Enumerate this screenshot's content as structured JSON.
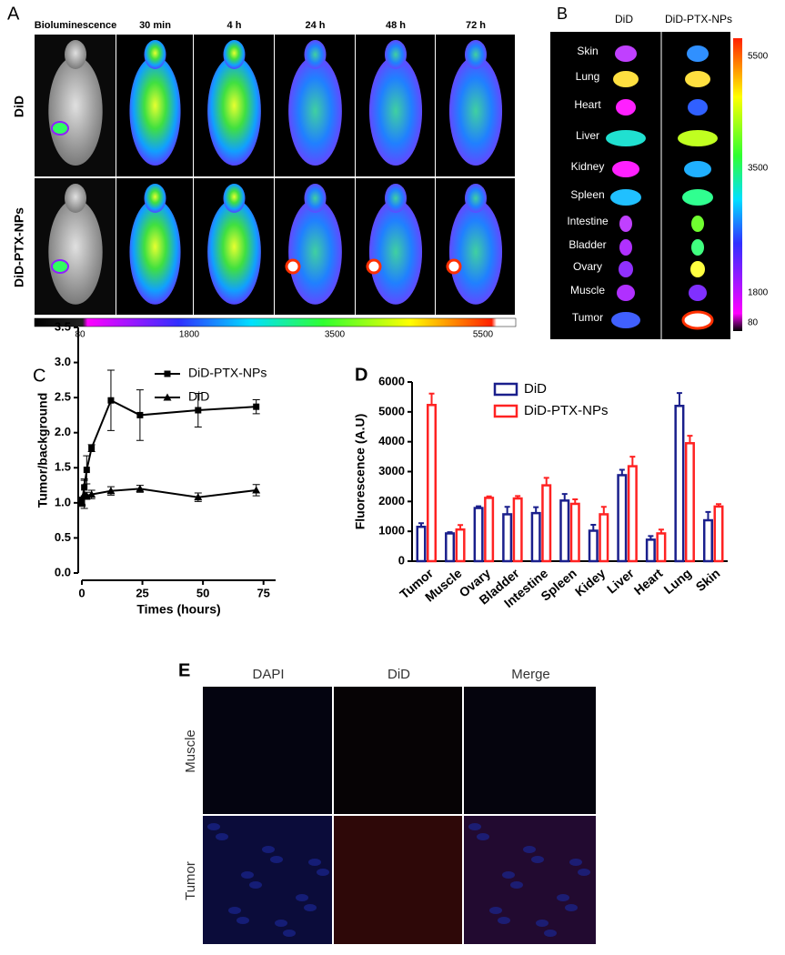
{
  "panel_a": {
    "label": "A",
    "columns": [
      "Bioluminescence",
      "30 min",
      "4 h",
      "24 h",
      "48 h",
      "72 h"
    ],
    "rows": [
      "DiD",
      "DiD-PTX-NPs"
    ],
    "scale_labels": [
      "80",
      "1800",
      "3500",
      "5500"
    ]
  },
  "panel_b": {
    "label": "B",
    "columns": [
      "DiD",
      "DiD-PTX-NPs"
    ],
    "organs": [
      "Skin",
      "Lung",
      "Heart",
      "Liver",
      "Kidney",
      "Spleen",
      "Intestine",
      "Bladder",
      "Ovary",
      "Muscle",
      "Tumor"
    ],
    "scale_labels": [
      "5500",
      "3500",
      "1800",
      "80"
    ]
  },
  "chart_data": [
    {
      "type": "line",
      "panel_label": "C",
      "x_label": "Times (hours)",
      "y_label": "Tumor/background",
      "xlim": [
        0,
        80
      ],
      "xticks": [
        0,
        25,
        50,
        75
      ],
      "ylim": [
        0,
        3.5
      ],
      "yticks": [
        {
          "value": 0,
          "label": "0.0"
        },
        0.5,
        {
          "value": 1,
          "label": "1.0"
        },
        1.5,
        {
          "value": 2,
          "label": "2.0"
        },
        2.5,
        {
          "value": 3,
          "label": "3.0"
        },
        3.5
      ],
      "x": [
        0,
        1,
        2,
        4,
        12,
        24,
        48,
        72
      ],
      "series": [
        {
          "name": "DiD-PTX-NPs",
          "color": "#000000",
          "marker": "square",
          "values": [
            1.03,
            1.22,
            1.47,
            1.78,
            2.46,
            2.25,
            2.32,
            2.37
          ],
          "errors": [
            0.05,
            0.12,
            0.2,
            0.05,
            0.43,
            0.36,
            0.24,
            0.1
          ]
        },
        {
          "name": "DiD",
          "color": "#000000",
          "marker": "triangle",
          "values": [
            1.0,
            1.12,
            1.1,
            1.12,
            1.17,
            1.2,
            1.08,
            1.18
          ],
          "errors": [
            0.05,
            0.2,
            0.05,
            0.06,
            0.06,
            0.05,
            0.06,
            0.08
          ]
        }
      ]
    },
    {
      "type": "bar",
      "panel_label": "D",
      "y_label": "Fluorescence (A.U)",
      "categories": [
        "Tumor",
        "Muscle",
        "Ovary",
        "Bladder",
        "Intestine",
        "Spleen",
        "Kidey",
        "Liver",
        "Heart",
        "Lung",
        "Skin"
      ],
      "ylim": [
        0,
        6000
      ],
      "yticks": [
        0,
        1000,
        2000,
        3000,
        4000,
        5000,
        6000
      ],
      "series": [
        {
          "name": "DiD",
          "color": "#1a1f8c",
          "values": [
            1150,
            930,
            1780,
            1570,
            1610,
            2030,
            1020,
            2880,
            720,
            5200,
            1370
          ],
          "errors": [
            120,
            40,
            60,
            250,
            200,
            220,
            200,
            180,
            120,
            430,
            280
          ]
        },
        {
          "name": "DiD-PTX-NPs",
          "color": "#ff2222",
          "values": [
            5230,
            1060,
            2120,
            2100,
            2540,
            1920,
            1570,
            3180,
            930,
            3950,
            1830
          ],
          "errors": [
            380,
            150,
            50,
            80,
            250,
            150,
            250,
            320,
            130,
            250,
            80
          ]
        }
      ]
    }
  ],
  "panel_e": {
    "label": "E",
    "columns": [
      "DAPI",
      "DiD",
      "Merge"
    ],
    "rows": [
      "Muscle",
      "Tumor"
    ]
  }
}
